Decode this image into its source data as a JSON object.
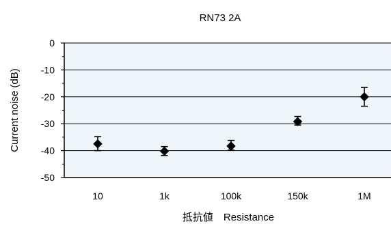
{
  "chart_data": {
    "type": "scatter",
    "title": "RN73 2A",
    "xlabel": "抵抗値　Resistance",
    "ylabel": "Current noise (dB)",
    "categories": [
      "10",
      "1k",
      "100k",
      "150k",
      "1M"
    ],
    "series": [
      {
        "values": [
          -37.5,
          -40.2,
          -38.3,
          -29.2,
          -20.0
        ],
        "error_low": [
          -40.0,
          -41.8,
          -39.8,
          -30.5,
          -23.5
        ],
        "error_high": [
          -34.8,
          -38.5,
          -36.2,
          -27.3,
          -16.5
        ]
      }
    ],
    "ylim": [
      -50,
      0
    ],
    "yticks": [
      0,
      -10,
      -20,
      -30,
      -40,
      -50
    ],
    "grid": true,
    "plot_background": "#eef6fc",
    "gridline_color": "#000000",
    "marker": "diamond",
    "marker_color": "#000000"
  }
}
